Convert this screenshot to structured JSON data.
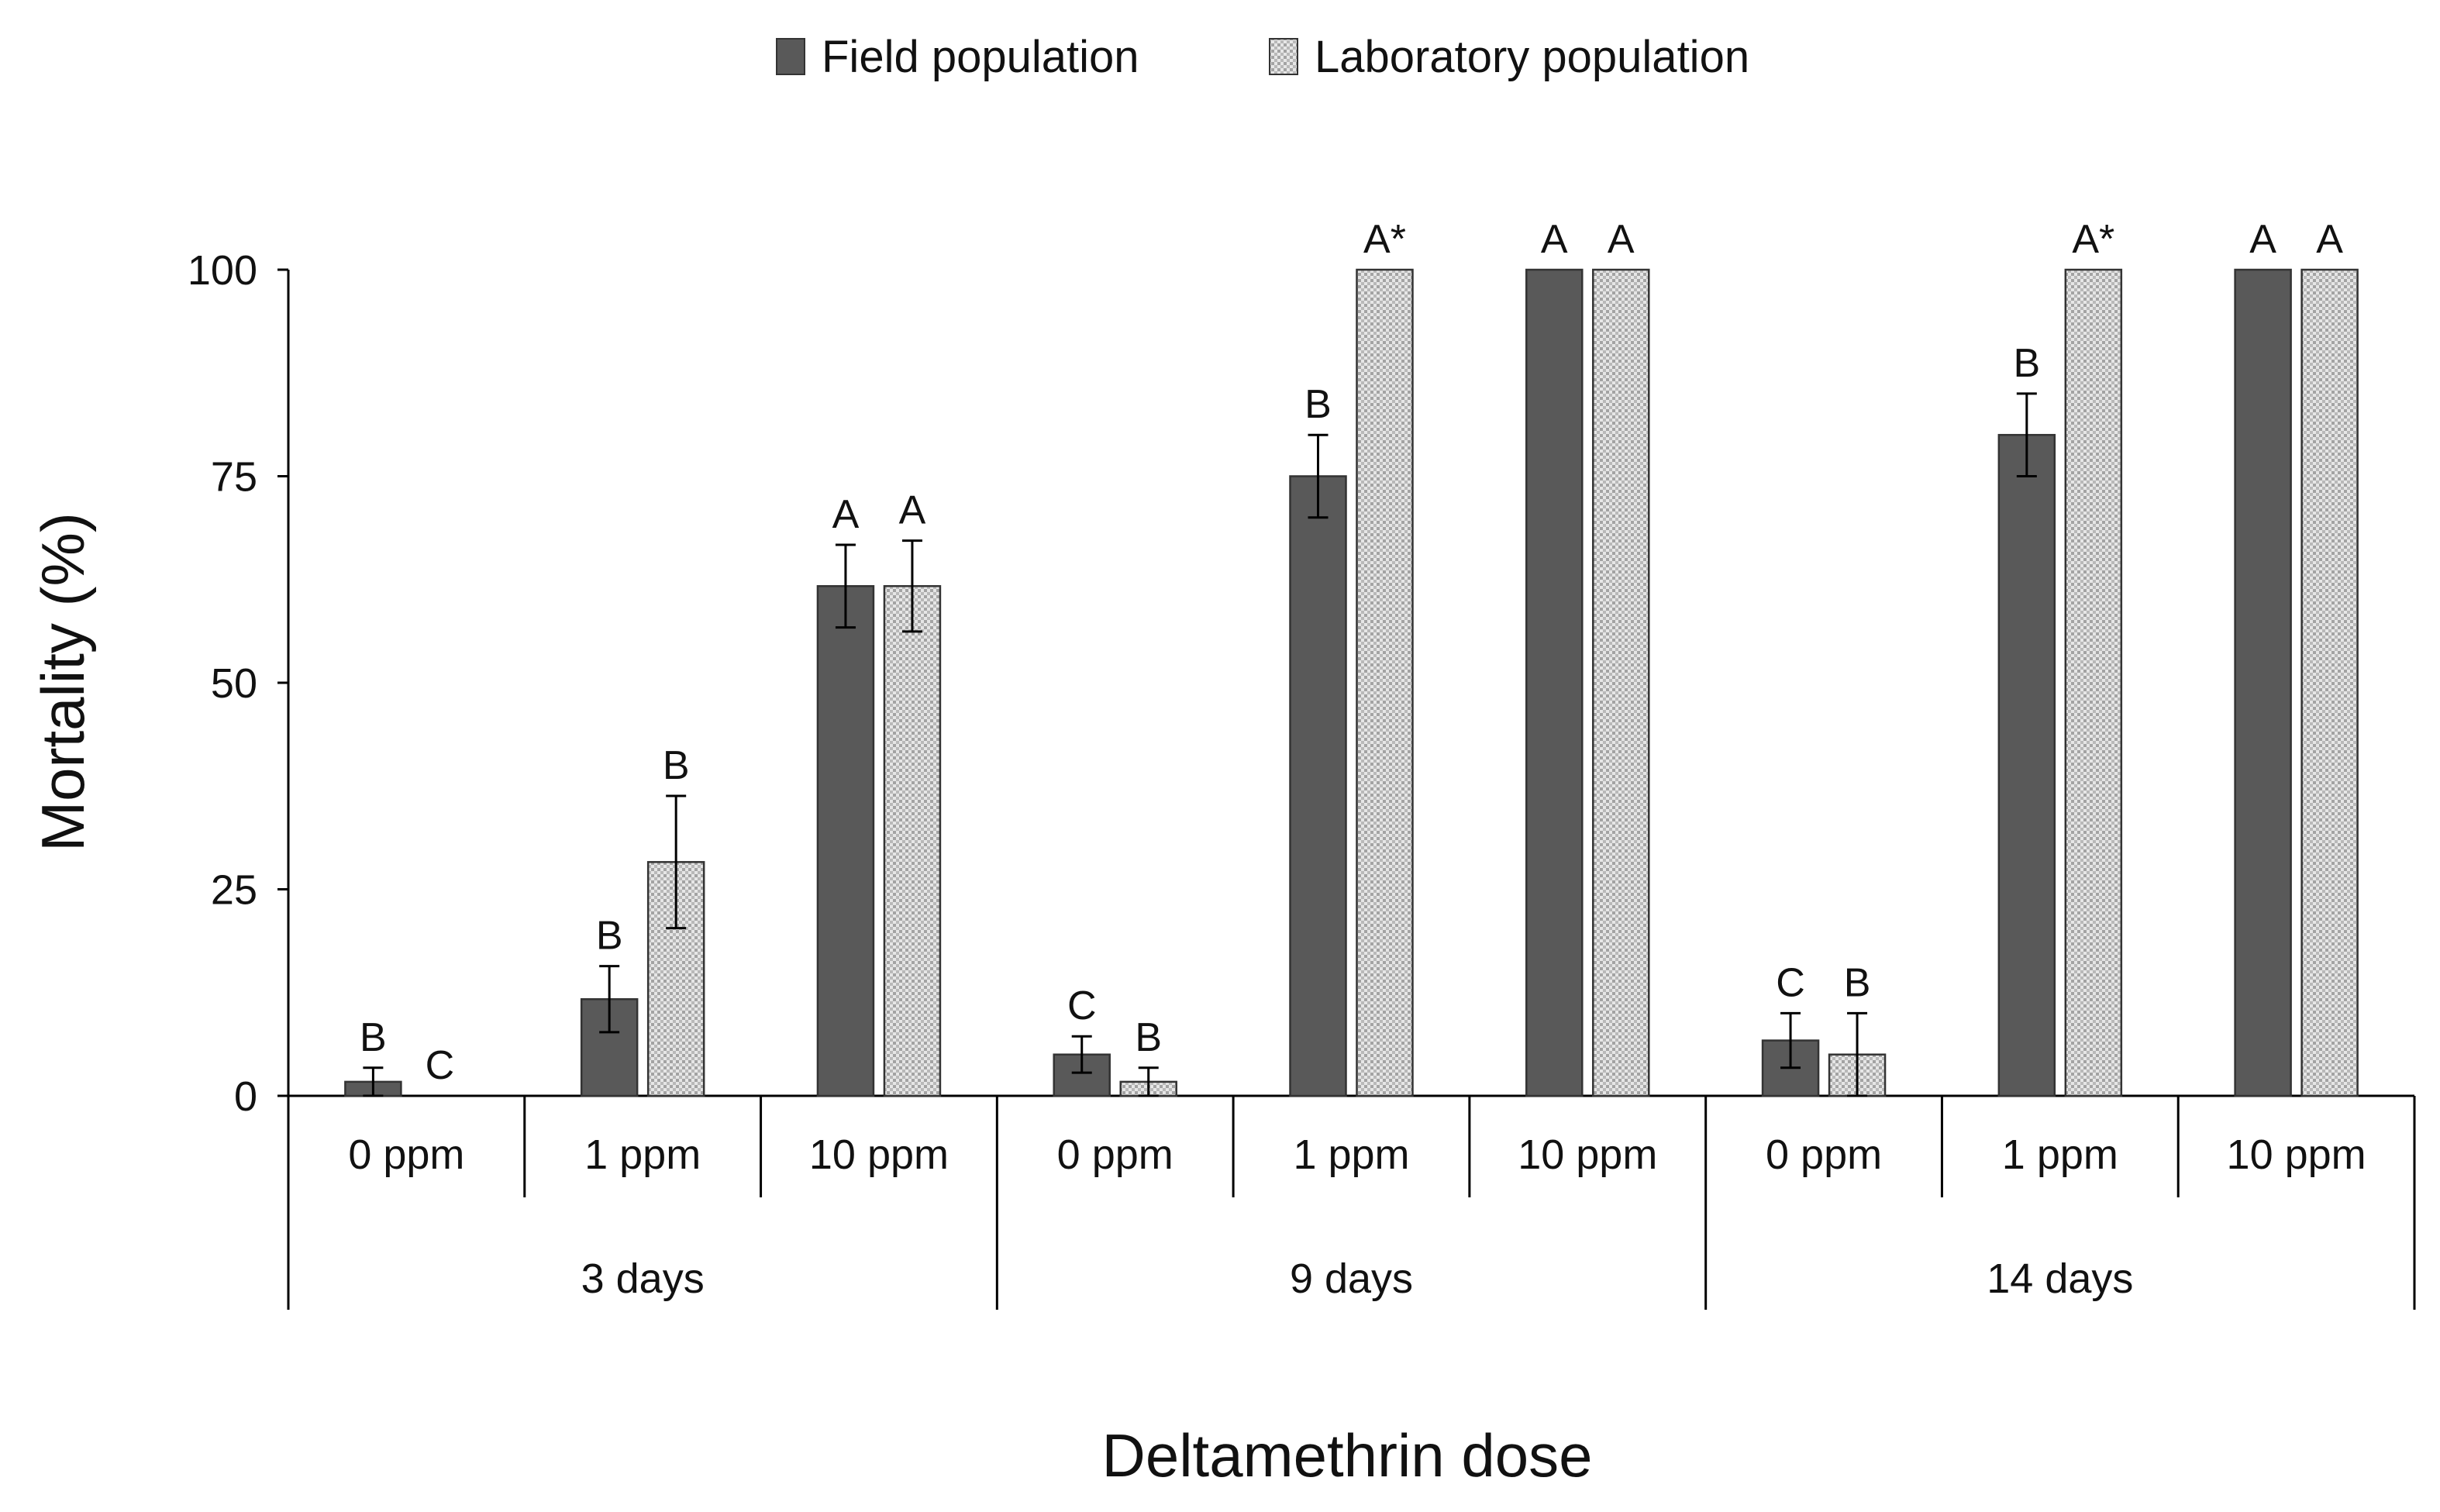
{
  "chart_data": {
    "type": "bar",
    "title": "",
    "xlabel": "Deltamethrin dose",
    "ylabel": "Mortality (%)",
    "ylim": [
      0,
      100
    ],
    "yticks": [
      0,
      25,
      50,
      75,
      100
    ],
    "grid": false,
    "legend_position": "top-center",
    "groups": [
      {
        "label": "3 days",
        "categories": [
          "0 ppm",
          "1 ppm",
          "10 ppm"
        ]
      },
      {
        "label": "9 days",
        "categories": [
          "0 ppm",
          "1 ppm",
          "10 ppm"
        ]
      },
      {
        "label": "14 days",
        "categories": [
          "0 ppm",
          "1 ppm",
          "10 ppm"
        ]
      }
    ],
    "series": [
      {
        "name": "Field population",
        "color": "#595959",
        "values": [
          1.7,
          11.7,
          61.7,
          5.0,
          75.0,
          100.0,
          6.7,
          80.0,
          100.0
        ],
        "errors": [
          1.7,
          4.0,
          5.0,
          2.2,
          5.0,
          0.0,
          3.3,
          5.0,
          0.0
        ],
        "letters": [
          "B",
          "B",
          "A",
          "C",
          "B",
          "A",
          "C",
          "B",
          "A"
        ]
      },
      {
        "name": "Laboratory population",
        "color": "#d0d0d0",
        "values": [
          0.0,
          28.3,
          61.7,
          1.7,
          100.0,
          100.0,
          5.0,
          100.0,
          100.0
        ],
        "errors": [
          0.0,
          8.0,
          5.5,
          1.7,
          0.0,
          0.0,
          5.0,
          0.0,
          0.0
        ],
        "letters": [
          "C",
          "B",
          "A",
          "B",
          "A*",
          "A",
          "B",
          "A*",
          "A"
        ]
      }
    ]
  }
}
